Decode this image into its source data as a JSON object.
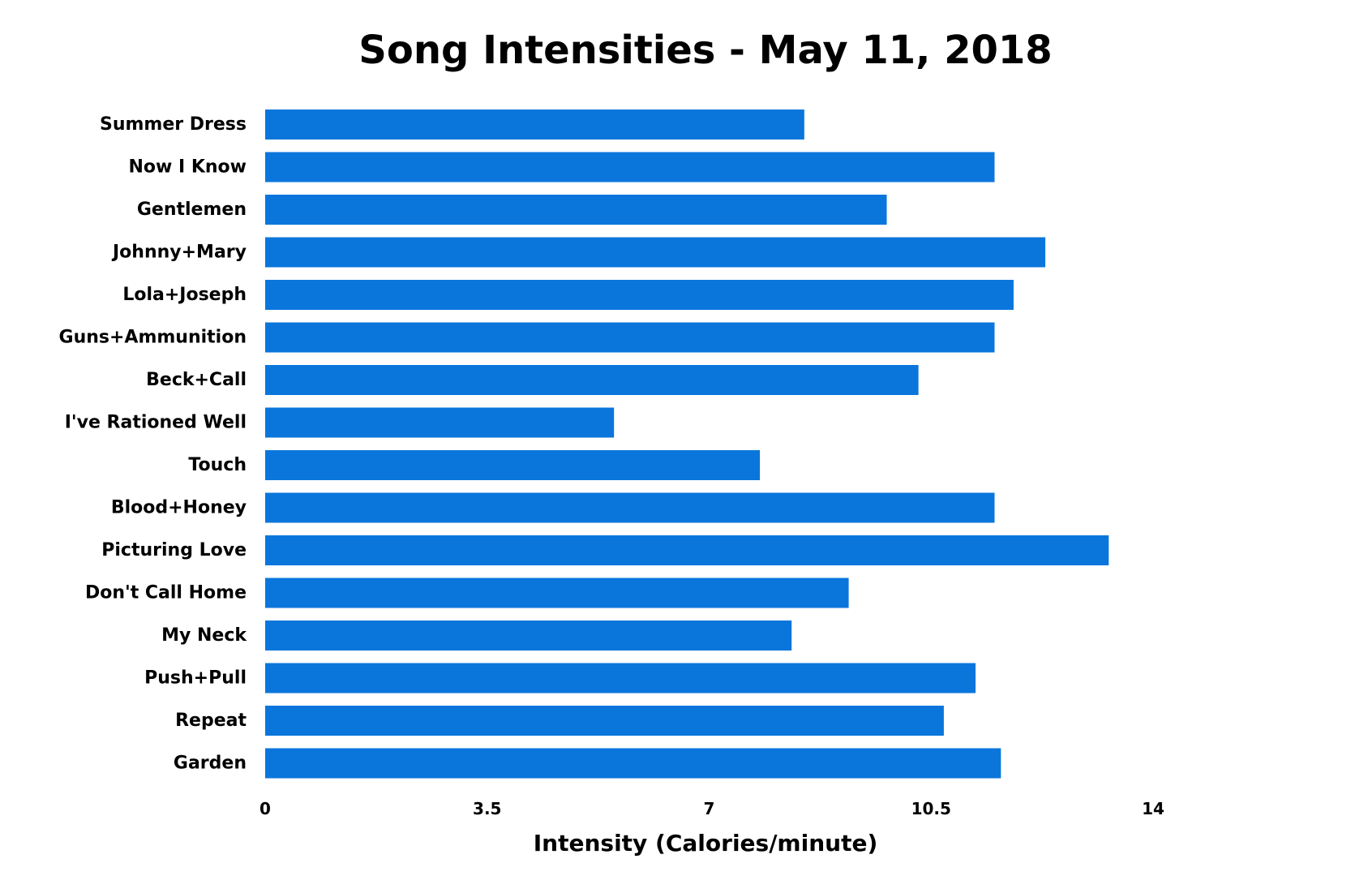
{
  "chart_data": {
    "type": "bar",
    "orientation": "horizontal",
    "title": "Song Intensities - May 11, 2018",
    "xlabel": "Intensity (Calories/minute)",
    "ylabel": "",
    "xlim": [
      0,
      14
    ],
    "xticks": [
      "0",
      "3.5",
      "7",
      "10.5",
      "14"
    ],
    "xtick_values": [
      0,
      3.5,
      7,
      10.5,
      14
    ],
    "grid": false,
    "bar_color": "#0a76dc",
    "categories": [
      "Summer Dress",
      "Now I Know",
      "Gentlemen",
      "Johnny+Mary",
      "Lola+Joseph",
      "Guns+Ammunition",
      "Beck+Call",
      "I've Rationed Well",
      "Touch",
      "Blood+Honey",
      "Picturing Love",
      "Don't Call Home",
      "My Neck",
      "Push+Pull",
      "Repeat",
      "Garden"
    ],
    "values": [
      8.5,
      11.5,
      9.8,
      12.3,
      11.8,
      11.5,
      10.3,
      5.5,
      7.8,
      11.5,
      13.3,
      9.2,
      8.3,
      11.2,
      10.7,
      11.6
    ]
  }
}
